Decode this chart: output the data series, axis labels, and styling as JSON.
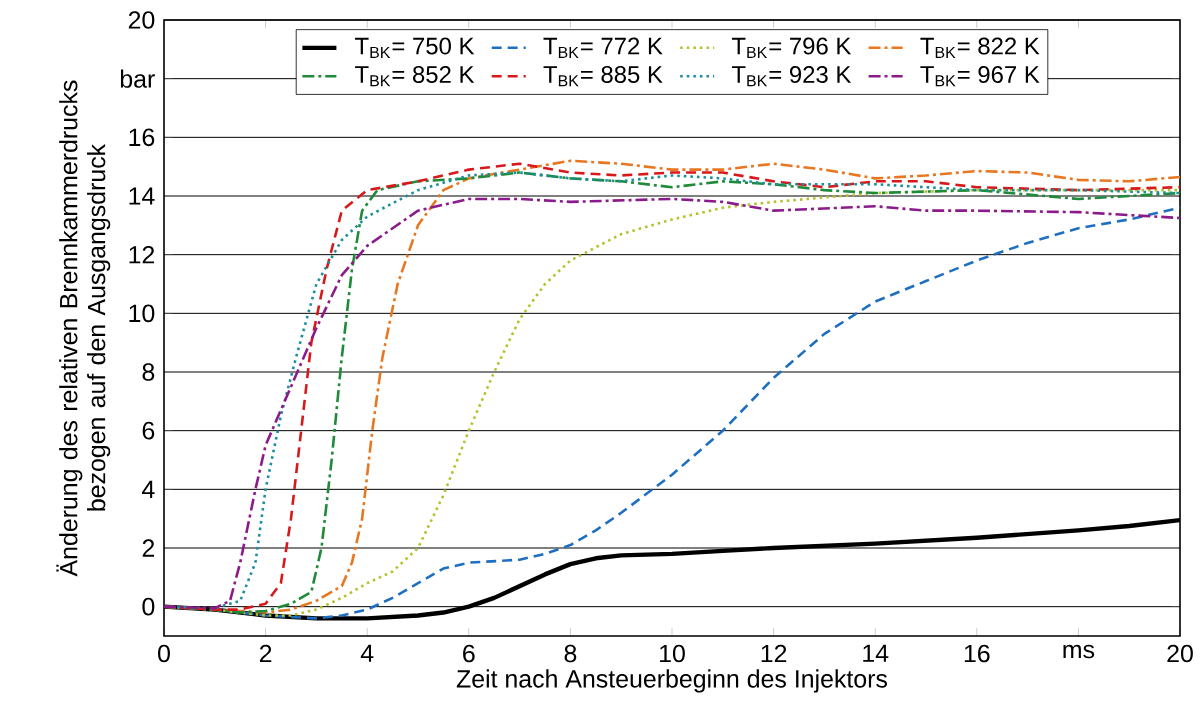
{
  "chart_data": {
    "type": "line",
    "xlabel": "Zeit nach Ansteuerbeginn des Injektors",
    "ylabel": "Änderung des relativen Brennkammerdrucks bezogen auf den Ausgangsdruck",
    "xlim": [
      0,
      20
    ],
    "ylim": [
      -1,
      20
    ],
    "xticks": [
      0,
      2,
      4,
      6,
      8,
      10,
      12,
      14,
      16,
      {
        "value": 18,
        "label": "ms"
      },
      20
    ],
    "yticks": [
      0,
      2,
      4,
      6,
      8,
      10,
      12,
      14,
      16,
      {
        "value": 18,
        "label": "bar"
      },
      20
    ],
    "grid": "y",
    "legend": "top",
    "marker": "none",
    "series": [
      {
        "name": "T$_{BK}$= 750 K",
        "color": "#000000",
        "line_style": "solid",
        "x": [
          0,
          1,
          2,
          3,
          4,
          5,
          5.5,
          6,
          6.5,
          7,
          7.5,
          8,
          8.5,
          9,
          10,
          11,
          12,
          14,
          16,
          18,
          19,
          20
        ],
        "values": [
          0,
          -0.1,
          -0.3,
          -0.4,
          -0.4,
          -0.3,
          -0.2,
          0,
          0.3,
          0.7,
          1.1,
          1.45,
          1.65,
          1.75,
          1.8,
          1.9,
          2.0,
          2.15,
          2.35,
          2.6,
          2.75,
          2.95
        ]
      },
      {
        "name": "T$_{BK}$= 772 K",
        "color": "#1f6fc0",
        "line_style": "dashed",
        "x": [
          0,
          1,
          2,
          3,
          3.5,
          4,
          4.5,
          5,
          5.5,
          6,
          7,
          7.5,
          8,
          8.5,
          9,
          10,
          11,
          12,
          13,
          14,
          15,
          16,
          17,
          18,
          19,
          20
        ],
        "values": [
          0,
          -0.1,
          -0.3,
          -0.4,
          -0.3,
          -0.1,
          0.3,
          0.8,
          1.3,
          1.5,
          1.6,
          1.8,
          2.1,
          2.6,
          3.2,
          4.5,
          6,
          7.8,
          9.3,
          10.4,
          11.1,
          11.8,
          12.4,
          12.9,
          13.2,
          13.6
        ]
      },
      {
        "name": "T$_{BK}$= 796 K",
        "color": "#b5c22d",
        "line_style": "dotted",
        "x": [
          0,
          1,
          2,
          2.5,
          3,
          3.5,
          4,
          4.5,
          5,
          5.5,
          6,
          6.5,
          7,
          7.5,
          8,
          9,
          10,
          11,
          12,
          14,
          16,
          18,
          20
        ],
        "values": [
          0,
          -0.1,
          -0.3,
          -0.3,
          -0.1,
          0.3,
          0.8,
          1.2,
          2,
          3.8,
          6,
          8,
          9.8,
          11,
          11.8,
          12.7,
          13.2,
          13.6,
          13.8,
          14.1,
          14.2,
          14.2,
          14.2
        ]
      },
      {
        "name": "T$_{BK}$= 822 K",
        "color": "#e87722",
        "line_style": "dashdot",
        "x": [
          0,
          1,
          2,
          2.5,
          3,
          3.5,
          3.7,
          3.9,
          4.1,
          4.3,
          4.6,
          5,
          5.5,
          6,
          7,
          8,
          9,
          10,
          11,
          12,
          13,
          14,
          15,
          16,
          17,
          18,
          19,
          20
        ],
        "values": [
          0,
          -0.1,
          -0.2,
          -0.1,
          0.2,
          0.7,
          1.5,
          3,
          6,
          8.5,
          11,
          13,
          14.2,
          14.6,
          14.9,
          15.2,
          15.1,
          14.9,
          14.9,
          15.1,
          14.9,
          14.6,
          14.7,
          14.85,
          14.8,
          14.55,
          14.5,
          14.65
        ]
      },
      {
        "name": "T$_{BK}$= 852 K",
        "color": "#1f8a3a",
        "line_style": "dashdot",
        "x": [
          0,
          1,
          1.5,
          2,
          2.5,
          2.9,
          3.1,
          3.3,
          3.5,
          3.7,
          3.9,
          4.2,
          5,
          6,
          7,
          8,
          9,
          10,
          11,
          12,
          13,
          14,
          16,
          18,
          20
        ],
        "values": [
          0,
          -0.1,
          -0.2,
          -0.15,
          0.1,
          0.5,
          2,
          5,
          8.5,
          11.5,
          13.5,
          14.2,
          14.5,
          14.6,
          14.8,
          14.6,
          14.5,
          14.3,
          14.5,
          14.4,
          14.2,
          14.1,
          14.2,
          13.9,
          14.1
        ]
      },
      {
        "name": "T$_{BK}$= 885 K",
        "color": "#d7191c",
        "line_style": "dashed",
        "x": [
          0,
          1,
          1.5,
          2,
          2.3,
          2.5,
          2.7,
          2.9,
          3.2,
          3.5,
          4,
          5,
          6,
          7,
          8,
          9,
          10,
          11,
          12,
          13,
          14,
          15,
          16,
          18,
          20
        ],
        "values": [
          0,
          -0.1,
          -0.1,
          0.1,
          0.8,
          3,
          6,
          9,
          11.5,
          13.5,
          14.2,
          14.5,
          14.9,
          15.1,
          14.8,
          14.7,
          14.8,
          14.8,
          14.5,
          14.3,
          14.5,
          14.5,
          14.3,
          14.2,
          14.3
        ]
      },
      {
        "name": "T$_{BK}$= 923 K",
        "color": "#1a8f9e",
        "line_style": "dotted",
        "x": [
          0,
          1,
          1.5,
          1.8,
          2,
          2.3,
          2.6,
          3,
          3.5,
          4,
          5,
          6,
          7,
          8,
          9,
          10,
          11,
          12,
          14,
          16,
          18,
          20
        ],
        "values": [
          0,
          -0.05,
          0.2,
          1.5,
          4,
          6.5,
          8.5,
          11,
          12.5,
          13.3,
          14.2,
          14.7,
          14.8,
          14.6,
          14.5,
          14.7,
          14.6,
          14.4,
          14.4,
          14.2,
          14.2,
          14.1
        ]
      },
      {
        "name": "T$_{BK}$= 967 K",
        "color": "#8b1a8b",
        "line_style": "dashdot",
        "x": [
          0,
          1,
          1.3,
          1.5,
          1.8,
          2,
          2.5,
          3,
          3.5,
          4,
          5,
          6,
          7,
          8,
          10,
          11,
          12,
          14,
          15,
          16,
          18,
          20
        ],
        "values": [
          0,
          -0.05,
          0.2,
          1.5,
          4,
          5.5,
          7.5,
          9.5,
          11.3,
          12.3,
          13.5,
          13.9,
          13.9,
          13.8,
          13.9,
          13.8,
          13.5,
          13.65,
          13.5,
          13.5,
          13.45,
          13.25
        ]
      }
    ]
  }
}
